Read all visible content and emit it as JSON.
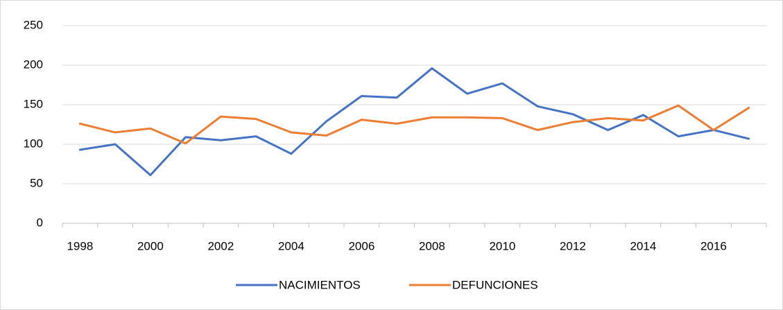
{
  "chart_data": {
    "type": "line",
    "categories": [
      "1998",
      null,
      "2000",
      null,
      "2002",
      null,
      "2004",
      null,
      "2006",
      null,
      "2008",
      null,
      "2010",
      null,
      "2012",
      null,
      "2014",
      null,
      "2016",
      null
    ],
    "series": [
      {
        "name": "NACIMIENTOS",
        "color": "#4472c4",
        "values": [
          93,
          100,
          61,
          109,
          105,
          110,
          88,
          129,
          161,
          159,
          196,
          164,
          177,
          148,
          138,
          118,
          137,
          110,
          118,
          107
        ]
      },
      {
        "name": "DEFUNCIONES",
        "color": "#ed7d31",
        "values": [
          126,
          115,
          120,
          101,
          135,
          132,
          115,
          111,
          131,
          126,
          134,
          134,
          133,
          118,
          128,
          133,
          130,
          149,
          118,
          146
        ]
      }
    ],
    "ylim": [
      0,
      250
    ],
    "yticks": [
      0,
      50,
      100,
      150,
      200,
      250
    ],
    "grid": true,
    "legend": "bottom"
  }
}
